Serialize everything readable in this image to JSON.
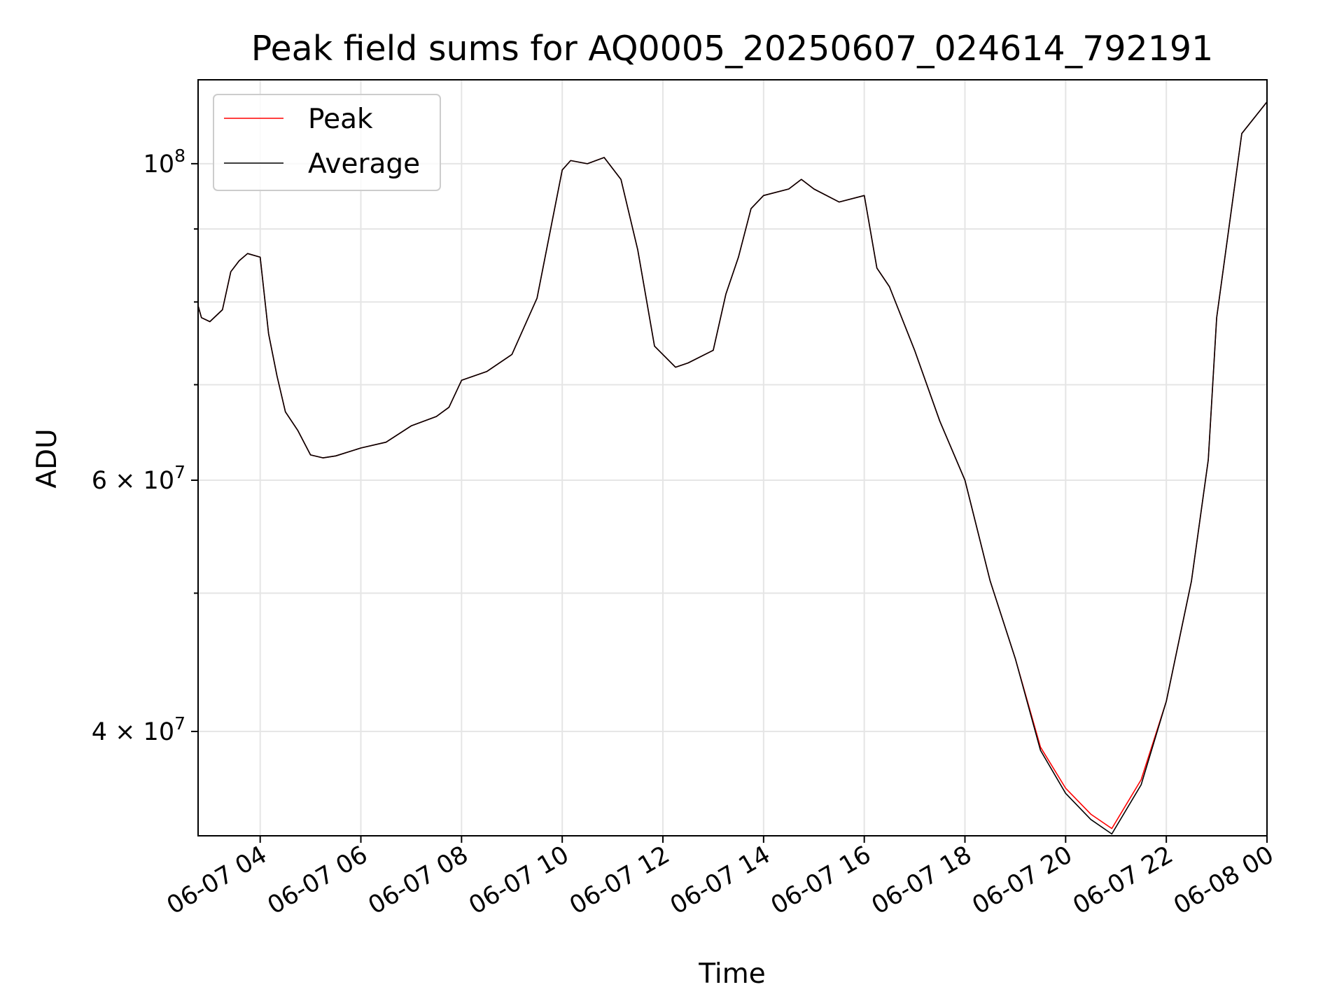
{
  "chart_data": {
    "type": "line",
    "title": "Peak field sums for AQ0005_20250607_024614_792191",
    "xlabel": "Time",
    "ylabel": "ADU",
    "y_scale": "log",
    "grid": true,
    "legend_position": "top-left",
    "xlim": [
      "2025-06-07 02:46",
      "2025-06-08 00:00"
    ],
    "ylim": [
      33800000,
      114500000
    ],
    "x_ticks": [
      "2025-06-07 04:00",
      "2025-06-07 06:00",
      "2025-06-07 08:00",
      "2025-06-07 10:00",
      "2025-06-07 12:00",
      "2025-06-07 14:00",
      "2025-06-07 16:00",
      "2025-06-07 18:00",
      "2025-06-07 20:00",
      "2025-06-07 22:00",
      "2025-06-08 00:00"
    ],
    "x_tick_labels": [
      "06-07 04",
      "06-07 06",
      "06-07 08",
      "06-07 10",
      "06-07 12",
      "06-07 14",
      "06-07 16",
      "06-07 18",
      "06-07 20",
      "06-07 22",
      "06-08 00"
    ],
    "y_ticks": [
      40000000,
      60000000,
      100000000
    ],
    "y_tick_labels": [
      {
        "base": "4 × 10",
        "exp": "7"
      },
      {
        "base": "6 × 10",
        "exp": "7"
      },
      {
        "base": "10",
        "exp": "8"
      }
    ],
    "y_minor_ticks": [
      50000000,
      70000000,
      80000000,
      90000000
    ],
    "x": [
      "2025-06-07 02:46",
      "2025-06-07 02:50",
      "2025-06-07 03:00",
      "2025-06-07 03:15",
      "2025-06-07 03:25",
      "2025-06-07 03:35",
      "2025-06-07 03:45",
      "2025-06-07 04:00",
      "2025-06-07 04:10",
      "2025-06-07 04:20",
      "2025-06-07 04:30",
      "2025-06-07 04:45",
      "2025-06-07 05:00",
      "2025-06-07 05:15",
      "2025-06-07 05:30",
      "2025-06-07 06:00",
      "2025-06-07 06:30",
      "2025-06-07 07:00",
      "2025-06-07 07:30",
      "2025-06-07 07:45",
      "2025-06-07 08:00",
      "2025-06-07 08:30",
      "2025-06-07 09:00",
      "2025-06-07 09:30",
      "2025-06-07 10:00",
      "2025-06-07 10:10",
      "2025-06-07 10:30",
      "2025-06-07 10:50",
      "2025-06-07 11:10",
      "2025-06-07 11:30",
      "2025-06-07 11:50",
      "2025-06-07 12:15",
      "2025-06-07 12:30",
      "2025-06-07 13:00",
      "2025-06-07 13:15",
      "2025-06-07 13:30",
      "2025-06-07 13:45",
      "2025-06-07 14:00",
      "2025-06-07 14:30",
      "2025-06-07 14:45",
      "2025-06-07 15:00",
      "2025-06-07 15:30",
      "2025-06-07 16:00",
      "2025-06-07 16:15",
      "2025-06-07 16:30",
      "2025-06-07 17:00",
      "2025-06-07 17:30",
      "2025-06-07 18:00",
      "2025-06-07 18:30",
      "2025-06-07 19:00",
      "2025-06-07 19:30",
      "2025-06-07 20:00",
      "2025-06-07 20:30",
      "2025-06-07 20:55",
      "2025-06-07 21:30",
      "2025-06-07 22:00",
      "2025-06-07 22:30",
      "2025-06-07 22:50",
      "2025-06-07 23:00",
      "2025-06-07 23:30",
      "2025-06-08 00:00"
    ],
    "series": [
      {
        "name": "Peak",
        "color": "#ff0000",
        "values": [
          79500000,
          78000000,
          77500000,
          79000000,
          84000000,
          85500000,
          86500000,
          86000000,
          76000000,
          71000000,
          67000000,
          65000000,
          62500000,
          62200000,
          62400000,
          63200000,
          63800000,
          65500000,
          66500000,
          67500000,
          70500000,
          71500000,
          73500000,
          80500000,
          99000000,
          100500000,
          100000000,
          101000000,
          97500000,
          87000000,
          74500000,
          72000000,
          72500000,
          74000000,
          81000000,
          86000000,
          93000000,
          95000000,
          96000000,
          97500000,
          96000000,
          94000000,
          95000000,
          84500000,
          82000000,
          74000000,
          66000000,
          60000000,
          51000000,
          45000000,
          39000000,
          36500000,
          35000000,
          34200000,
          37000000,
          42000000,
          51000000,
          62000000,
          78000000,
          105000000,
          110500000
        ]
      },
      {
        "name": "Average",
        "color": "#000000",
        "values": [
          79500000,
          78000000,
          77500000,
          79000000,
          84000000,
          85500000,
          86500000,
          86000000,
          76000000,
          71000000,
          67000000,
          65000000,
          62500000,
          62200000,
          62400000,
          63200000,
          63800000,
          65500000,
          66500000,
          67500000,
          70500000,
          71500000,
          73500000,
          80500000,
          99000000,
          100500000,
          100000000,
          101000000,
          97500000,
          87000000,
          74500000,
          72000000,
          72500000,
          74000000,
          81000000,
          86000000,
          93000000,
          95000000,
          96000000,
          97500000,
          96000000,
          94000000,
          95000000,
          84500000,
          82000000,
          74000000,
          66000000,
          60000000,
          51000000,
          45000000,
          38800000,
          36200000,
          34700000,
          33900000,
          36700000,
          42000000,
          51000000,
          62000000,
          78000000,
          105000000,
          110500000
        ]
      }
    ]
  }
}
